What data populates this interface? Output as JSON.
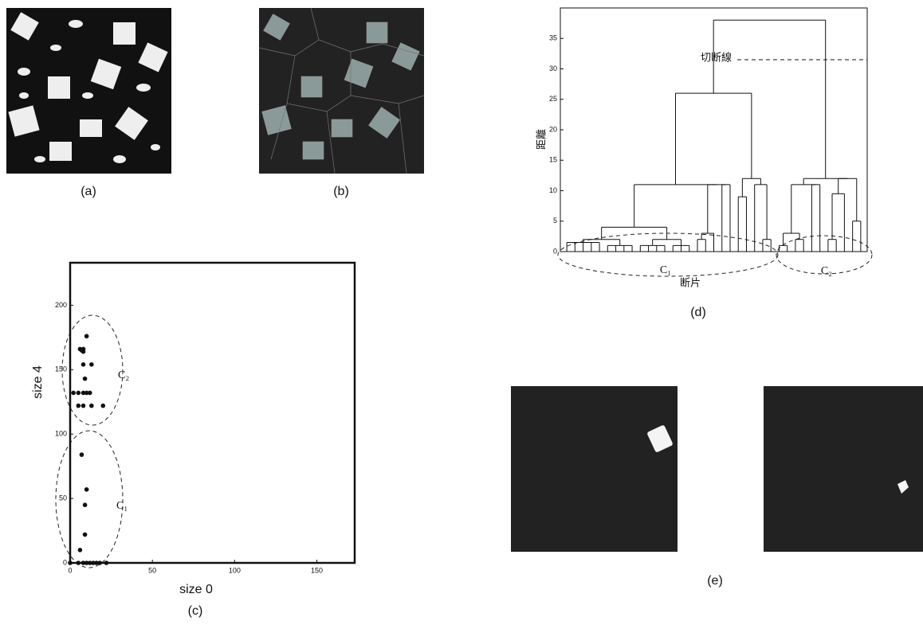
{
  "panels": {
    "a": {
      "caption": "(a)"
    },
    "b": {
      "caption": "(b)"
    },
    "e": {
      "caption": "(e)"
    }
  },
  "chart_data": [
    {
      "type": "scatter",
      "caption": "(c)",
      "x_label": "size 0",
      "y_label": "size 4",
      "xlim": [
        0,
        173
      ],
      "ylim": [
        0,
        233
      ],
      "xticks": [
        0,
        50,
        100,
        150
      ],
      "yticks": [
        0,
        50,
        100,
        150,
        200
      ],
      "color": "#111111",
      "x": [
        0,
        5,
        8,
        10,
        12,
        14,
        16,
        18,
        22,
        6,
        9,
        9,
        10,
        7,
        2,
        5,
        8,
        10,
        12,
        5,
        8,
        13,
        20,
        6,
        8,
        7,
        8,
        9,
        8,
        13,
        10
      ],
      "values": [
        0,
        0,
        0,
        0,
        0,
        0,
        0,
        0,
        0,
        10,
        22,
        45,
        57,
        84,
        132,
        132,
        132,
        132,
        132,
        122,
        122,
        122,
        122,
        166,
        166,
        165,
        164,
        143,
        154,
        154,
        176
      ],
      "annotations": [
        "C₂",
        "C₁"
      ]
    },
    {
      "type": "dendrogram",
      "caption": "(d)",
      "x_label": "断片",
      "y_label": "距離",
      "ylim": [
        0,
        40
      ],
      "yticks": [
        0,
        5,
        10,
        15,
        20,
        25,
        30,
        35
      ],
      "cut_line": {
        "label": "切断線",
        "value": 31.5
      },
      "annotations": [
        "C₁",
        "C₂"
      ],
      "tree": {
        "h": 38,
        "c": [
          {
            "h": 26,
            "c": [
              {
                "h": 11,
                "c": [
                  {
                    "h": 4,
                    "c": [
                      {
                        "h": 2,
                        "c": [
                          {
                            "h": 1.5,
                            "c": [
                              0,
                              0,
                              0,
                              0,
                              0
                            ]
                          },
                          {
                            "h": 1,
                            "c": [
                              0,
                              0,
                              0,
                              0
                            ]
                          }
                        ]
                      },
                      {
                        "h": 2,
                        "c": [
                          {
                            "h": 1,
                            "c": [
                              0,
                              0,
                              0,
                              0
                            ]
                          },
                          {
                            "h": 1,
                            "c": [
                              0,
                              0,
                              0
                            ]
                          }
                        ]
                      }
                    ]
                  },
                  {
                    "h": 11,
                    "c": [
                      {
                        "h": 3,
                        "c": [
                          {
                            "h": 2,
                            "c": [
                              0,
                              0
                            ]
                          },
                          0
                        ]
                      },
                      {
                        "h": 11,
                        "c": [
                          0,
                          0
                        ]
                      }
                    ]
                  }
                ]
              },
              {
                "h": 12,
                "c": [
                  {
                    "h": 9,
                    "c": [
                      0,
                      0
                    ]
                  },
                  {
                    "h": 11,
                    "c": [
                      0,
                      {
                        "h": 2,
                        "c": [
                          0,
                          0
                        ]
                      }
                    ]
                  }
                ]
              }
            ]
          },
          {
            "h": 12,
            "c": [
              {
                "h": 11,
                "c": [
                  {
                    "h": 3,
                    "c": [
                      {
                        "h": 1,
                        "c": [
                          0,
                          0
                        ]
                      },
                      {
                        "h": 2,
                        "c": [
                          0,
                          0
                        ]
                      }
                    ]
                  },
                  {
                    "h": 11,
                    "c": [
                      0,
                      0
                    ]
                  }
                ]
              },
              {
                "h": 12,
                "c": [
                  {
                    "h": 9.5,
                    "c": [
                      {
                        "h": 2,
                        "c": [
                          0,
                          0
                        ]
                      },
                      0
                    ]
                  },
                  {
                    "h": 5,
                    "c": [
                      0,
                      0
                    ]
                  }
                ]
              }
            ]
          }
        ]
      }
    }
  ]
}
